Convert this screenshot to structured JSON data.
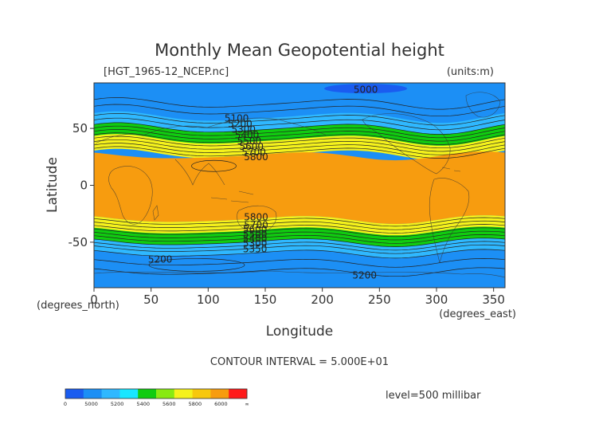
{
  "chart_data": {
    "type": "heatmap",
    "title": "Monthly Mean Geopotential height",
    "file_label": "[HGT_1965-12_NCEP.nc]",
    "units_label": "(units:m)",
    "xlabel": "Longitude",
    "ylabel": "Latitude",
    "x_unit_label": "(degrees_east)",
    "y_unit_label": "(degrees_north)",
    "xlim": [
      0,
      360
    ],
    "ylim": [
      -90,
      90
    ],
    "x_ticks": [
      0,
      50,
      100,
      150,
      200,
      250,
      300,
      350
    ],
    "y_ticks": [
      -50,
      0,
      50
    ],
    "contour_interval_text": "CONTOUR INTERVAL = 5.000E+01",
    "level_text": "level=500 millibar",
    "colorbar": {
      "tick_labels": [
        "0",
        "5000",
        "5200",
        "5400",
        "5600",
        "5800",
        "6000",
        "∞"
      ],
      "colors": [
        "#1a5cf0",
        "#1c8ff5",
        "#2fb8ff",
        "#19e6ff",
        "#10cc10",
        "#88ea12",
        "#f5f21c",
        "#f7c80c",
        "#f79c0f",
        "#ff1a1a"
      ]
    },
    "bands": [
      {
        "lat_range": [
          50,
          90
        ],
        "value_range": [
          5000,
          5200
        ],
        "color": "#1c8ff5"
      },
      {
        "lat_range": [
          44,
          60
        ],
        "value_range": [
          5200,
          5400
        ],
        "color": "#2fb8ff"
      },
      {
        "lat_range": [
          36,
          50
        ],
        "value_range": [
          5400,
          5600
        ],
        "color": "#10cc10"
      },
      {
        "lat_range": [
          27,
          40
        ],
        "value_range": [
          5600,
          5800
        ],
        "color": "#f5f21c"
      },
      {
        "lat_range": [
          -30,
          26
        ],
        "value_range": [
          5800,
          6000
        ],
        "color": "#f79c0f"
      },
      {
        "lat_range": [
          -44,
          -30
        ],
        "value_range": [
          5600,
          5800
        ],
        "color": "#f5f21c"
      },
      {
        "lat_range": [
          -52,
          -40
        ],
        "value_range": [
          5400,
          5600
        ],
        "color": "#10cc10"
      },
      {
        "lat_range": [
          -64,
          -50
        ],
        "value_range": [
          5200,
          5400
        ],
        "color": "#2fb8ff"
      },
      {
        "lat_range": [
          -90,
          -60
        ],
        "value_range": [
          5000,
          5200
        ],
        "color": "#1c8ff5"
      }
    ],
    "contour_labels": [
      {
        "text": "5000",
        "lon": 238,
        "lat": 84
      },
      {
        "text": "5100",
        "lon": 125,
        "lat": 59
      },
      {
        "text": "5200",
        "lon": 128,
        "lat": 54
      },
      {
        "text": "5300",
        "lon": 131,
        "lat": 49
      },
      {
        "text": "5400",
        "lon": 134,
        "lat": 44
      },
      {
        "text": "5500",
        "lon": 136,
        "lat": 39
      },
      {
        "text": "5600",
        "lon": 138,
        "lat": 34
      },
      {
        "text": "5700",
        "lon": 140,
        "lat": 29
      },
      {
        "text": "5800",
        "lon": 142,
        "lat": 25
      },
      {
        "text": "5800",
        "lon": 142,
        "lat": -28
      },
      {
        "text": "5700",
        "lon": 142,
        "lat": -35
      },
      {
        "text": "5600",
        "lon": 141,
        "lat": -39
      },
      {
        "text": "5500",
        "lon": 141,
        "lat": -43
      },
      {
        "text": "5400",
        "lon": 141,
        "lat": -47
      },
      {
        "text": "5300",
        "lon": 141,
        "lat": -51
      },
      {
        "text": "5350",
        "lon": 141,
        "lat": -56
      },
      {
        "text": "5200",
        "lon": 58,
        "lat": -65
      },
      {
        "text": "5200",
        "lon": 237,
        "lat": -79
      }
    ]
  }
}
